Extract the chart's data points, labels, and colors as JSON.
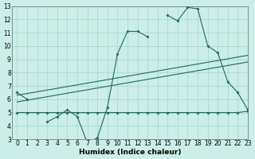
{
  "xlabel": "Humidex (Indice chaleur)",
  "bg_color": "#cceee8",
  "grid_color": "#aad8d0",
  "line_color": "#1a6b5a",
  "x_data": [
    0,
    1,
    2,
    3,
    4,
    5,
    6,
    7,
    8,
    9,
    10,
    11,
    12,
    13,
    14,
    15,
    16,
    17,
    18,
    19,
    20,
    21,
    22,
    23
  ],
  "series1": [
    6.5,
    6.0,
    null,
    4.3,
    4.7,
    5.2,
    4.7,
    2.7,
    3.1,
    5.4,
    9.4,
    11.1,
    11.1,
    10.7,
    null,
    12.3,
    11.9,
    12.9,
    12.8,
    10.0,
    9.5,
    7.3,
    6.5,
    5.2
  ],
  "series2_x": [
    0,
    1,
    2,
    3,
    4,
    5,
    6,
    7,
    8,
    9,
    10,
    11,
    12,
    13,
    14,
    15,
    16,
    17,
    18,
    19,
    20,
    21,
    22,
    23
  ],
  "series2_y": [
    5.0,
    5.0,
    5.0,
    5.0,
    5.0,
    5.0,
    5.0,
    5.0,
    5.0,
    5.0,
    5.0,
    5.0,
    5.0,
    5.0,
    5.0,
    5.0,
    5.0,
    5.0,
    5.0,
    5.0,
    5.0,
    5.0,
    5.0,
    5.1
  ],
  "trend1_x": [
    0,
    23
  ],
  "trend1_y": [
    6.3,
    9.3
  ],
  "trend2_x": [
    0,
    23
  ],
  "trend2_y": [
    5.8,
    8.8
  ],
  "ylim": [
    3,
    13
  ],
  "xlim": [
    -0.5,
    23
  ],
  "yticks": [
    3,
    4,
    5,
    6,
    7,
    8,
    9,
    10,
    11,
    12,
    13
  ],
  "xticks": [
    0,
    1,
    2,
    3,
    4,
    5,
    6,
    7,
    8,
    9,
    10,
    11,
    12,
    13,
    14,
    15,
    16,
    17,
    18,
    19,
    20,
    21,
    22,
    23
  ],
  "xlabel_fontsize": 6.5,
  "tick_fontsize": 5.5
}
